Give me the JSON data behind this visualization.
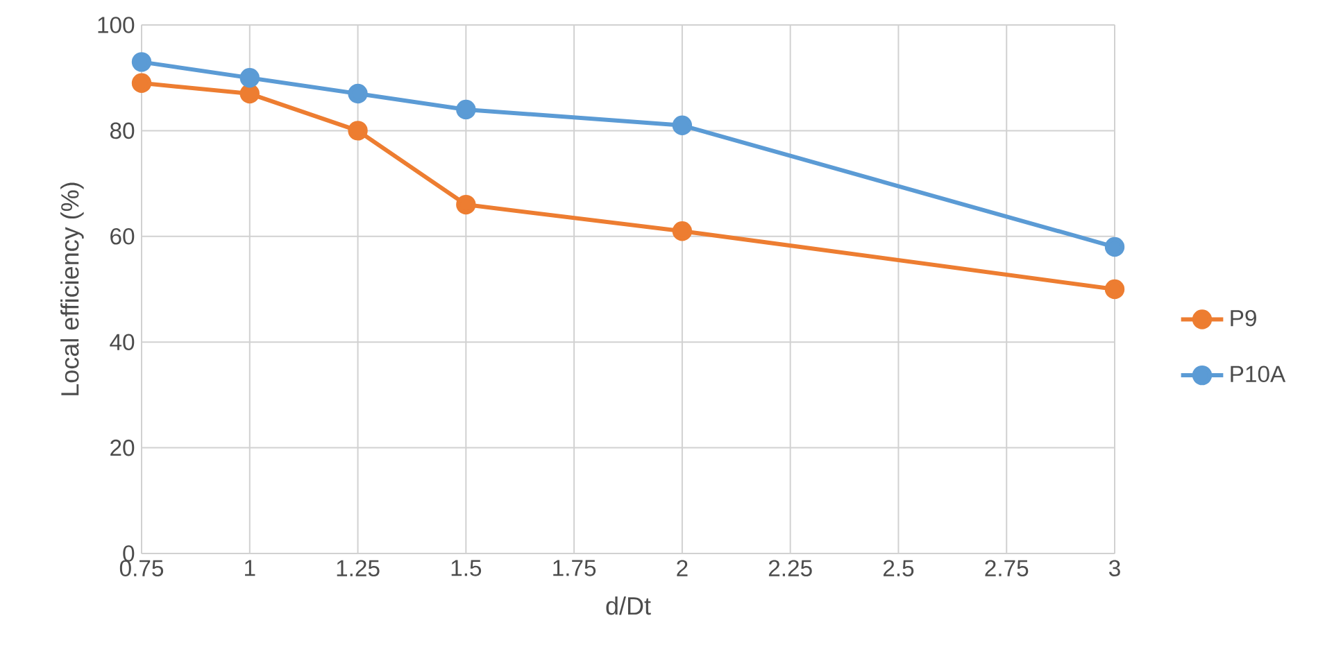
{
  "chart_data": {
    "type": "line",
    "xlabel": "d/Dt",
    "ylabel": "Local efficiency (%)",
    "x": [
      0.75,
      1,
      1.25,
      1.5,
      2,
      3
    ],
    "series": [
      {
        "name": "P9",
        "color": "#ed7d31",
        "values": [
          89,
          87,
          80,
          66,
          61,
          50
        ]
      },
      {
        "name": "P10A",
        "color": "#5b9bd5",
        "values": [
          93,
          90,
          87,
          84,
          81,
          58
        ]
      }
    ],
    "xlim": [
      0.75,
      3
    ],
    "xticks": [
      0.75,
      1,
      1.25,
      1.5,
      1.75,
      2,
      2.25,
      2.5,
      2.75,
      3
    ],
    "ylim": [
      0,
      100
    ],
    "yticks": [
      0,
      20,
      40,
      60,
      80,
      100
    ],
    "grid": true,
    "legend": "right",
    "marker": "circle",
    "line_style": "solid"
  }
}
